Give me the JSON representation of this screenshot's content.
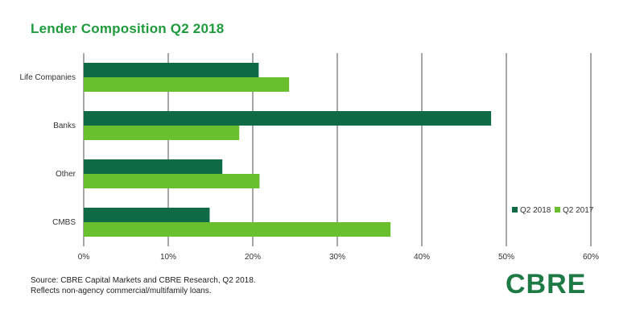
{
  "chart_data": {
    "type": "bar",
    "orientation": "horizontal",
    "title": "Lender Composition Q2 2018",
    "categories": [
      "Life Companies",
      "Banks",
      "Other",
      "CMBS"
    ],
    "series": [
      {
        "name": "Q2 2018",
        "color": "#0e6b45",
        "values": [
          20.7,
          48.2,
          16.4,
          14.9
        ]
      },
      {
        "name": "Q2 2017",
        "color": "#6abf2e",
        "values": [
          24.3,
          18.4,
          20.8,
          36.3
        ]
      }
    ],
    "xlim": [
      0,
      60
    ],
    "xticks": [
      "0%",
      "10%",
      "20%",
      "30%",
      "40%",
      "50%",
      "60%"
    ],
    "grid": true,
    "legend_position": "right"
  },
  "source": {
    "line1": "Source: CBRE Capital Markets and CBRE Research, Q2 2018.",
    "line2": "Reflects non-agency commercial/multifamily loans."
  },
  "logo": {
    "text": "CBRE"
  }
}
